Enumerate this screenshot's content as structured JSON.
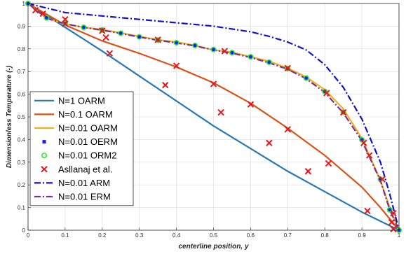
{
  "chart_data": {
    "type": "line",
    "xlabel": "centerline position, y",
    "ylabel": "Dimensionless Temperature (-)",
    "xlim": [
      0,
      1
    ],
    "ylim": [
      0,
      1
    ],
    "x_ticks": [
      "0",
      "0.1",
      "0.2",
      "0.3",
      "0.4",
      "0.5",
      "0.6",
      "0.7",
      "0.8",
      "0.9",
      "1"
    ],
    "y_ticks": [
      "0",
      "0.1",
      "0.2",
      "0.3",
      "0.4",
      "0.5",
      "0.6",
      "0.7",
      "0.8",
      "0.9",
      "1"
    ],
    "grid": true,
    "legend_position": "bottom-left",
    "series": [
      {
        "name": "N=1 OARM",
        "color": "#2878b5",
        "style": "solid",
        "marker": "none",
        "points": [
          [
            0,
            1
          ],
          [
            0.1,
            0.895
          ],
          [
            0.2,
            0.79
          ],
          [
            0.3,
            0.68
          ],
          [
            0.4,
            0.57
          ],
          [
            0.5,
            0.46
          ],
          [
            0.6,
            0.36
          ],
          [
            0.7,
            0.26
          ],
          [
            0.8,
            0.17
          ],
          [
            0.9,
            0.08
          ],
          [
            1,
            0
          ]
        ]
      },
      {
        "name": "N=0.1 OARM",
        "color": "#d95319",
        "style": "solid",
        "marker": "none",
        "points": [
          [
            0,
            1
          ],
          [
            0.1,
            0.905
          ],
          [
            0.2,
            0.835
          ],
          [
            0.3,
            0.78
          ],
          [
            0.4,
            0.72
          ],
          [
            0.5,
            0.65
          ],
          [
            0.6,
            0.56
          ],
          [
            0.7,
            0.45
          ],
          [
            0.8,
            0.33
          ],
          [
            0.9,
            0.19
          ],
          [
            0.95,
            0.1
          ],
          [
            1,
            0
          ]
        ]
      },
      {
        "name": "N=0.01 OARM",
        "color": "#edb120",
        "style": "solid",
        "marker": "none",
        "points": [
          [
            0,
            1
          ],
          [
            0.05,
            0.935
          ],
          [
            0.1,
            0.91
          ],
          [
            0.15,
            0.895
          ],
          [
            0.2,
            0.885
          ],
          [
            0.25,
            0.87
          ],
          [
            0.3,
            0.855
          ],
          [
            0.35,
            0.84
          ],
          [
            0.4,
            0.83
          ],
          [
            0.45,
            0.815
          ],
          [
            0.5,
            0.795
          ],
          [
            0.55,
            0.785
          ],
          [
            0.6,
            0.765
          ],
          [
            0.65,
            0.745
          ],
          [
            0.7,
            0.715
          ],
          [
            0.75,
            0.675
          ],
          [
            0.8,
            0.62
          ],
          [
            0.85,
            0.535
          ],
          [
            0.9,
            0.405
          ],
          [
            0.95,
            0.22
          ],
          [
            0.975,
            0.1
          ],
          [
            1,
            0
          ]
        ]
      },
      {
        "name": "N=0.01 OERM",
        "color": "#1a1aff",
        "style": "none",
        "marker": "square",
        "points": [
          [
            0,
            1
          ],
          [
            0.05,
            0.937
          ],
          [
            0.1,
            0.912
          ],
          [
            0.15,
            0.895
          ],
          [
            0.2,
            0.883
          ],
          [
            0.25,
            0.869
          ],
          [
            0.3,
            0.853
          ],
          [
            0.35,
            0.839
          ],
          [
            0.4,
            0.827
          ],
          [
            0.45,
            0.815
          ],
          [
            0.5,
            0.797
          ],
          [
            0.55,
            0.783
          ],
          [
            0.6,
            0.765
          ],
          [
            0.65,
            0.741
          ],
          [
            0.7,
            0.713
          ],
          [
            0.75,
            0.671
          ],
          [
            0.8,
            0.612
          ],
          [
            0.85,
            0.521
          ],
          [
            0.9,
            0.399
          ],
          [
            0.95,
            0.225
          ],
          [
            0.975,
            0.09
          ],
          [
            1,
            0
          ]
        ]
      },
      {
        "name": "N=0.01 ORM2",
        "color": "#2eea2e",
        "style": "none",
        "marker": "circle",
        "points": [
          [
            0,
            1
          ],
          [
            0.05,
            0.937
          ],
          [
            0.1,
            0.912
          ],
          [
            0.15,
            0.895
          ],
          [
            0.2,
            0.883
          ],
          [
            0.25,
            0.869
          ],
          [
            0.3,
            0.853
          ],
          [
            0.35,
            0.839
          ],
          [
            0.4,
            0.827
          ],
          [
            0.45,
            0.815
          ],
          [
            0.5,
            0.797
          ],
          [
            0.55,
            0.783
          ],
          [
            0.6,
            0.765
          ],
          [
            0.65,
            0.741
          ],
          [
            0.7,
            0.713
          ],
          [
            0.75,
            0.671
          ],
          [
            0.8,
            0.612
          ],
          [
            0.85,
            0.521
          ],
          [
            0.9,
            0.399
          ],
          [
            0.95,
            0.225
          ],
          [
            0.975,
            0.09
          ],
          [
            1,
            0
          ]
        ]
      },
      {
        "name": "Asllanaj et al.",
        "color": "#e8161d",
        "style": "none",
        "marker": "x",
        "points": [
          [
            0.02,
            0.97
          ],
          [
            0.1,
            0.91
          ],
          [
            0.22,
            0.78
          ],
          [
            0.37,
            0.64
          ],
          [
            0.52,
            0.52
          ],
          [
            0.65,
            0.385
          ],
          [
            0.755,
            0.26
          ],
          [
            0.915,
            0.085
          ],
          [
            0.985,
            0.005
          ],
          [
            0.04,
            0.955
          ],
          [
            0.1,
            0.93
          ],
          [
            0.21,
            0.85
          ],
          [
            0.4,
            0.725
          ],
          [
            0.5,
            0.645
          ],
          [
            0.6,
            0.555
          ],
          [
            0.7,
            0.445
          ],
          [
            0.81,
            0.295
          ],
          [
            0.98,
            0.035
          ],
          [
            0.2,
            0.88
          ],
          [
            0.35,
            0.84
          ],
          [
            0.53,
            0.79
          ],
          [
            0.7,
            0.715
          ],
          [
            0.805,
            0.605
          ],
          [
            0.85,
            0.52
          ],
          [
            0.905,
            0.385
          ],
          [
            0.92,
            0.33
          ],
          [
            0.955,
            0.225
          ],
          [
            0.985,
            0.075
          ]
        ]
      },
      {
        "name": "N=0.01 ARM",
        "color": "#1010cc",
        "style": "dashdot",
        "marker": "none",
        "points": [
          [
            0,
            1
          ],
          [
            0.1,
            0.96
          ],
          [
            0.2,
            0.945
          ],
          [
            0.3,
            0.93
          ],
          [
            0.4,
            0.915
          ],
          [
            0.5,
            0.9
          ],
          [
            0.6,
            0.875
          ],
          [
            0.65,
            0.855
          ],
          [
            0.7,
            0.83
          ],
          [
            0.75,
            0.795
          ],
          [
            0.8,
            0.73
          ],
          [
            0.85,
            0.63
          ],
          [
            0.9,
            0.49
          ],
          [
            0.95,
            0.3
          ],
          [
            0.975,
            0.16
          ],
          [
            1,
            0
          ]
        ]
      },
      {
        "name": "N=0.01 ERM",
        "color": "#7e2f8e",
        "style": "dashdot",
        "marker": "none",
        "points": [
          [
            0,
            1
          ],
          [
            0.05,
            0.935
          ],
          [
            0.1,
            0.91
          ],
          [
            0.15,
            0.895
          ],
          [
            0.2,
            0.882
          ],
          [
            0.25,
            0.868
          ],
          [
            0.3,
            0.852
          ],
          [
            0.35,
            0.838
          ],
          [
            0.4,
            0.826
          ],
          [
            0.45,
            0.813
          ],
          [
            0.5,
            0.795
          ],
          [
            0.55,
            0.781
          ],
          [
            0.6,
            0.762
          ],
          [
            0.65,
            0.738
          ],
          [
            0.7,
            0.71
          ],
          [
            0.75,
            0.668
          ],
          [
            0.8,
            0.608
          ],
          [
            0.85,
            0.517
          ],
          [
            0.9,
            0.395
          ],
          [
            0.95,
            0.218
          ],
          [
            0.975,
            0.09
          ],
          [
            1,
            0
          ]
        ]
      }
    ]
  }
}
